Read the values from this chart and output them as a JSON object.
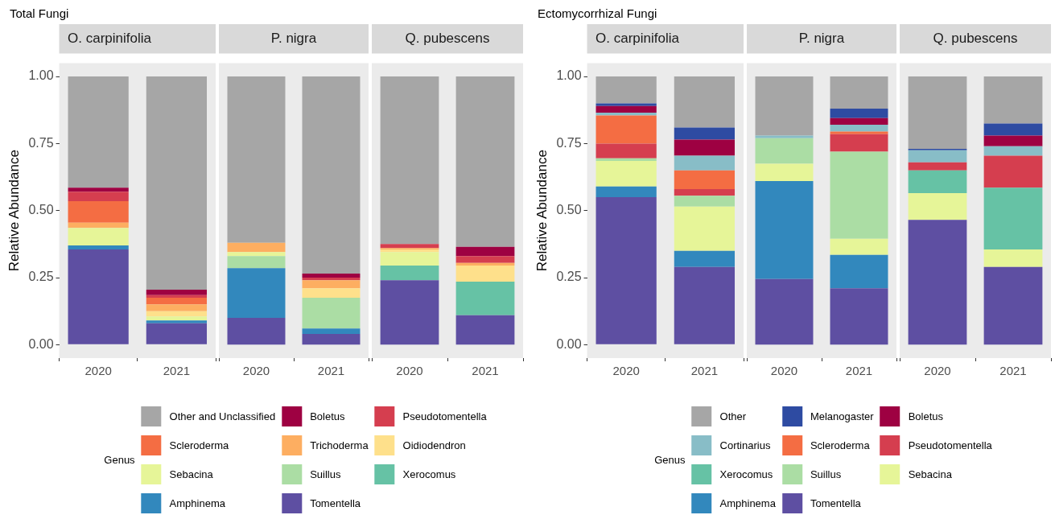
{
  "chart_data": [
    {
      "type": "bar",
      "title": "Total Fungi",
      "subtitle": "O. carpinifolia",
      "ylabel": "Relative Abundance",
      "categories": [
        "2020",
        "2021"
      ],
      "stacked": true,
      "ylim": [
        -0.05,
        1.05
      ],
      "yticks": [
        {
          "value": 0,
          "label": "0.00"
        },
        {
          "value": 0.25,
          "label": "0.25"
        },
        {
          "value": 0.5,
          "label": "0.50"
        },
        {
          "value": 0.75,
          "label": "0.75"
        },
        {
          "value": 1,
          "label": "1.00"
        }
      ],
      "series": [
        {
          "color": "#5e4fa2",
          "values": [
            0.355,
            0.08
          ]
        },
        {
          "color": "#3288bd",
          "values": [
            0.015,
            0.01
          ]
        },
        {
          "color": "#e6f598",
          "values": [
            0.065,
            0.015
          ]
        },
        {
          "color": "#fee08b",
          "values": [
            null,
            0.02
          ]
        },
        {
          "color": "#fdae61",
          "values": [
            0.02,
            0.025
          ]
        },
        {
          "color": "#f46d43",
          "values": [
            0.08,
            0.025
          ]
        },
        {
          "color": "#d53e4f",
          "values": [
            0.035,
            0.01
          ]
        },
        {
          "color": "#9e0142",
          "values": [
            0.015,
            0.02
          ]
        },
        {
          "color": "#a6a6a6",
          "values": [
            0.415,
            0.795
          ]
        }
      ]
    },
    {
      "type": "bar",
      "subtitle": "P. nigra",
      "categories": [
        "2020",
        "2021"
      ],
      "stacked": true,
      "tick_labels": "x",
      "legend": "bottom",
      "legend_title": "Genus",
      "ylim": [
        -0.05,
        1.05
      ],
      "series": [
        {
          "name": "Tomentella",
          "color": "#5e4fa2",
          "values": [
            0.1,
            0.04
          ]
        },
        {
          "name": "Amphinema",
          "color": "#3288bd",
          "values": [
            0.185,
            0.02
          ]
        },
        {
          "name": "Xerocomus",
          "color": "#66c2a5",
          "values": [
            null,
            null
          ]
        },
        {
          "name": "Suillus",
          "color": "#abdda4",
          "values": [
            0.045,
            0.115
          ]
        },
        {
          "name": "Sebacina",
          "color": "#e6f598",
          "values": [
            0.015,
            null
          ]
        },
        {
          "name": "Oidiodendron",
          "color": "#fee08b",
          "values": [
            null,
            0.035
          ]
        },
        {
          "name": "Trichoderma",
          "color": "#fdae61",
          "values": [
            0.035,
            0.03
          ]
        },
        {
          "name": "Scleroderma",
          "color": "#f46d43",
          "values": [
            null,
            null
          ]
        },
        {
          "name": "Pseudotomentella",
          "color": "#d53e4f",
          "values": [
            null,
            0.01
          ]
        },
        {
          "name": "Boletus",
          "color": "#9e0142",
          "values": [
            null,
            0.015
          ]
        },
        {
          "name": "Other and Unclassified",
          "color": "#a6a6a6",
          "values": [
            0.62,
            0.735
          ]
        }
      ]
    },
    {
      "type": "bar",
      "subtitle": "Q. pubescens",
      "categories": [
        "2020",
        "2021"
      ],
      "stacked": true,
      "tick_labels": "x",
      "ylim": [
        -0.05,
        1.05
      ],
      "series": [
        {
          "color": "#5e4fa2",
          "values": [
            0.24,
            0.11
          ]
        },
        {
          "color": "#66c2a5",
          "values": [
            0.055,
            0.125
          ]
        },
        {
          "color": "#e6f598",
          "values": [
            0.05,
            null
          ]
        },
        {
          "color": "#fee08b",
          "values": [
            0.01,
            0.06
          ]
        },
        {
          "color": "#fdae61",
          "values": [
            0.005,
            0.01
          ]
        },
        {
          "color": "#d53e4f",
          "values": [
            0.015,
            0.025
          ]
        },
        {
          "color": "#9e0142",
          "values": [
            null,
            0.035
          ]
        },
        {
          "color": "#a6a6a6",
          "values": [
            0.625,
            0.635
          ]
        }
      ]
    },
    {
      "type": "bar",
      "title": "Ectomycorrhizal Fungi",
      "subtitle": "O. carpinifolia",
      "ylabel": "Relative Abundance",
      "categories": [
        "2020",
        "2021"
      ],
      "stacked": true,
      "ylim": [
        -0.05,
        1.05
      ],
      "yticks": [
        {
          "value": 0,
          "label": "0.00"
        },
        {
          "value": 0.25,
          "label": "0.25"
        },
        {
          "value": 0.5,
          "label": "0.50"
        },
        {
          "value": 0.75,
          "label": "0.75"
        },
        {
          "value": 1,
          "label": "1.00"
        }
      ],
      "series": [
        {
          "color": "#5e4fa2",
          "values": [
            0.55,
            0.29
          ]
        },
        {
          "color": "#3288bd",
          "values": [
            0.04,
            0.06
          ]
        },
        {
          "color": "#e6f598",
          "values": [
            0.095,
            0.165
          ]
        },
        {
          "color": "#abdda4",
          "values": [
            0.01,
            0.04
          ]
        },
        {
          "color": "#d53e4f",
          "values": [
            0.055,
            0.025
          ]
        },
        {
          "color": "#f46d43",
          "values": [
            0.105,
            0.07
          ]
        },
        {
          "color": "#88bdc7",
          "values": [
            0.01,
            0.055
          ]
        },
        {
          "color": "#9e0142",
          "values": [
            0.025,
            0.06
          ]
        },
        {
          "color": "#2e4ba2",
          "values": [
            0.01,
            0.045
          ]
        },
        {
          "color": "#a6a6a6",
          "values": [
            0.1,
            0.19
          ]
        }
      ]
    },
    {
      "type": "bar",
      "subtitle": "P. nigra",
      "categories": [
        "2020",
        "2021"
      ],
      "stacked": true,
      "tick_labels": "x",
      "legend": "bottom",
      "legend_title": "Genus",
      "ylim": [
        -0.05,
        1.05
      ],
      "series": [
        {
          "name": "Tomentella",
          "color": "#5e4fa2",
          "values": [
            0.245,
            0.21
          ]
        },
        {
          "name": "Amphinema",
          "color": "#3288bd",
          "values": [
            0.365,
            0.125
          ]
        },
        {
          "name": "Sebacina",
          "color": "#e6f598",
          "values": [
            0.065,
            0.06
          ]
        },
        {
          "name": "Suillus",
          "color": "#abdda4",
          "values": [
            0.095,
            0.325
          ]
        },
        {
          "name": "Xerocomus",
          "color": "#66c2a5",
          "values": [
            null,
            null
          ]
        },
        {
          "name": "Pseudotomentella",
          "color": "#d53e4f",
          "values": [
            null,
            0.065
          ]
        },
        {
          "name": "Scleroderma",
          "color": "#f46d43",
          "values": [
            null,
            0.01
          ]
        },
        {
          "name": "Cortinarius",
          "color": "#88bdc7",
          "values": [
            0.01,
            0.025
          ]
        },
        {
          "name": "Boletus",
          "color": "#9e0142",
          "values": [
            null,
            0.025
          ]
        },
        {
          "name": "Melanogaster",
          "color": "#2e4ba2",
          "values": [
            null,
            0.035
          ]
        },
        {
          "name": "Other",
          "color": "#a6a6a6",
          "values": [
            0.22,
            0.12
          ]
        }
      ]
    },
    {
      "type": "bar",
      "subtitle": "Q. pubescens",
      "categories": [
        "2020",
        "2021"
      ],
      "stacked": true,
      "tick_labels": "x",
      "ylim": [
        -0.05,
        1.05
      ],
      "series": [
        {
          "color": "#5e4fa2",
          "values": [
            0.465,
            0.29
          ]
        },
        {
          "color": "#e6f598",
          "values": [
            0.1,
            0.065
          ]
        },
        {
          "color": "#66c2a5",
          "values": [
            0.085,
            0.23
          ]
        },
        {
          "color": "#d53e4f",
          "values": [
            0.03,
            0.12
          ]
        },
        {
          "color": "#88bdc7",
          "values": [
            0.045,
            0.035
          ]
        },
        {
          "color": "#9e0142",
          "values": [
            null,
            0.04
          ]
        },
        {
          "color": "#2e4ba2",
          "values": [
            0.005,
            0.045
          ]
        },
        {
          "color": "#a6a6a6",
          "values": [
            0.27,
            0.175
          ]
        }
      ]
    }
  ]
}
